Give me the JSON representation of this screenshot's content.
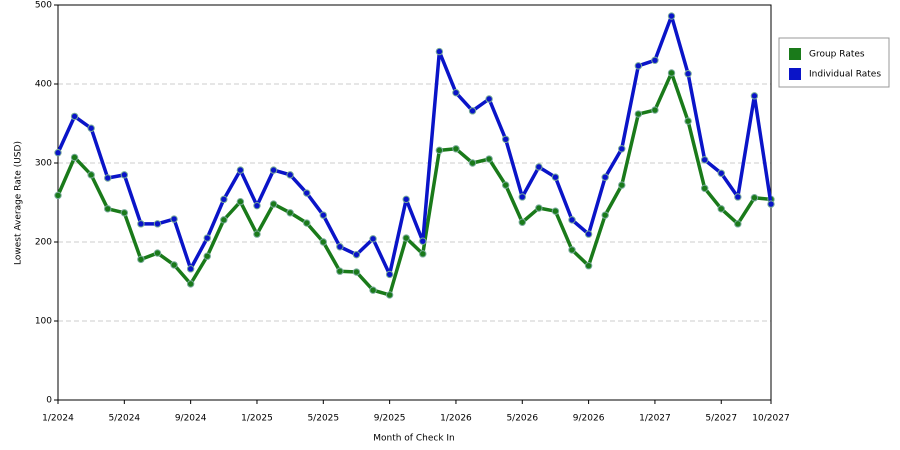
{
  "chart_data": {
    "type": "line",
    "x_label": "Month of Check In",
    "y_label": "Lowest Average Rate (USD)",
    "categories": [
      "1/2024",
      null,
      null,
      null,
      "5/2024",
      null,
      null,
      null,
      "9/2024",
      null,
      null,
      null,
      "1/2025",
      null,
      null,
      null,
      "5/2025",
      null,
      null,
      null,
      "9/2025",
      null,
      null,
      null,
      "1/2026",
      null,
      null,
      null,
      "5/2026",
      null,
      null,
      null,
      "9/2026",
      null,
      null,
      null,
      "1/2027",
      null,
      null,
      null,
      "5/2027",
      null,
      null,
      "10/2027"
    ],
    "series": [
      {
        "name": "Group Rates",
        "color": "#1a7a1a",
        "values": [
          259,
          307,
          285,
          242,
          237,
          178,
          186,
          171,
          147,
          182,
          228,
          251,
          210,
          248,
          237,
          224,
          200,
          163,
          162,
          139,
          133,
          205,
          185,
          316,
          318,
          300,
          305,
          272,
          225,
          243,
          239,
          190,
          170,
          234,
          272,
          362,
          367,
          414,
          353,
          268,
          242,
          223,
          256,
          254
        ]
      },
      {
        "name": "Individual Rates",
        "color": "#0a14c8",
        "values": [
          313,
          359,
          344,
          281,
          285,
          223,
          223,
          229,
          166,
          205,
          254,
          291,
          246,
          291,
          285,
          262,
          234,
          194,
          184,
          204,
          159,
          254,
          201,
          441,
          389,
          366,
          381,
          330,
          257,
          295,
          282,
          228,
          210,
          282,
          318,
          423,
          430,
          486,
          413,
          304,
          287,
          257,
          385,
          248
        ]
      }
    ],
    "ylim": [
      0,
      500
    ],
    "yticks": [
      0,
      100,
      200,
      300,
      400,
      500
    ],
    "grid": true,
    "legend": "right"
  }
}
